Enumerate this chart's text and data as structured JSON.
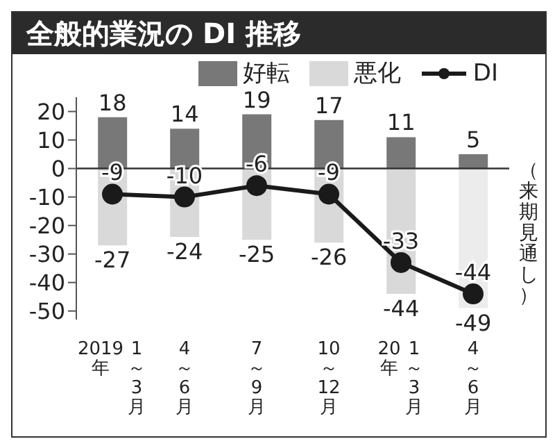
{
  "chart_data": {
    "type": "bar",
    "title": "全般的業況の DI 推移",
    "categories": [
      "2019年\n1～3月",
      "4～6月",
      "7～9月",
      "10～12月",
      "20年\n1～3月",
      "4～6月"
    ],
    "series": [
      {
        "name": "好転",
        "color": "#787878",
        "values": [
          18,
          14,
          19,
          17,
          11,
          5
        ]
      },
      {
        "name": "悪化",
        "color": "#d9d9d9",
        "colors": [
          "#d9d9d9",
          "#d9d9d9",
          "#d9d9d9",
          "#d9d9d9",
          "#d9d9d9",
          "#ececec"
        ],
        "values": [
          -27,
          -24,
          -25,
          -26,
          -44,
          -49
        ]
      },
      {
        "name": "DI",
        "type": "line",
        "color": "#1a1a1a",
        "values": [
          -9,
          -10,
          -6,
          -9,
          -33,
          -44
        ]
      }
    ],
    "stacked": true,
    "ylim": [
      -53,
      25
    ],
    "yticks": [
      20,
      10,
      0,
      -10,
      -20,
      -30,
      -40,
      -50
    ],
    "ref_lines": [
      {
        "axis": "y",
        "value": 0,
        "color": "#333333"
      }
    ],
    "annotations": [
      "（来期見通し）"
    ],
    "data_labels": true,
    "legend": "top right",
    "marker": "circle",
    "line_style": "solid",
    "grid": false
  }
}
